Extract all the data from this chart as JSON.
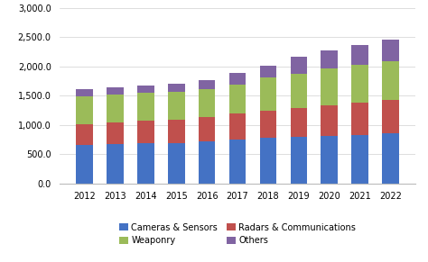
{
  "years": [
    "2012",
    "2013",
    "2014",
    "2015",
    "2016",
    "2017",
    "2018",
    "2019",
    "2020",
    "2021",
    "2022"
  ],
  "cameras_sensors": [
    650,
    665,
    685,
    685,
    720,
    755,
    780,
    800,
    810,
    825,
    850
  ],
  "radars_comms": [
    355,
    370,
    385,
    400,
    415,
    440,
    465,
    490,
    530,
    555,
    575
  ],
  "weaponry": [
    490,
    490,
    480,
    480,
    470,
    500,
    560,
    580,
    620,
    640,
    660
  ],
  "others": [
    115,
    115,
    125,
    135,
    155,
    200,
    200,
    295,
    320,
    350,
    370
  ],
  "colors": {
    "cameras_sensors": "#4472c4",
    "radars_comms": "#c0504d",
    "weaponry": "#9bbb59",
    "others": "#8064a2"
  },
  "ylim": [
    0,
    3000
  ],
  "yticks": [
    0,
    500,
    1000,
    1500,
    2000,
    2500,
    3000
  ],
  "legend": [
    "Cameras & Sensors",
    "Radars & Communications",
    "Weaponry",
    "Others"
  ],
  "legend_order": [
    0,
    2,
    1,
    3
  ],
  "figsize": [
    4.74,
    2.91
  ],
  "dpi": 100
}
